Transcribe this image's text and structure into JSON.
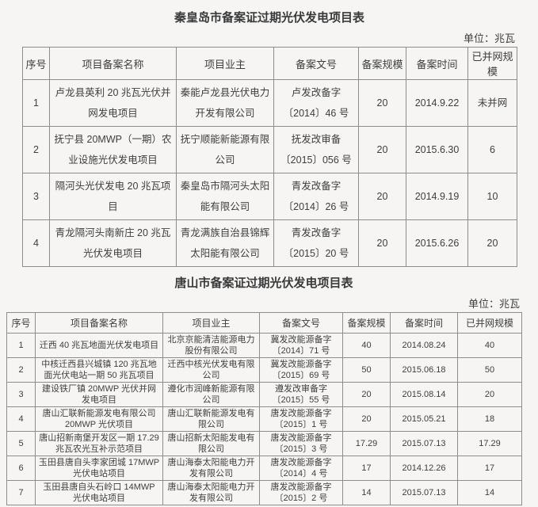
{
  "colors": {
    "background": "#f6f5f3",
    "text": "#3e3e3e",
    "border": "#8d8d8d"
  },
  "document": {
    "tables": [
      {
        "title": "秦皇岛市备案证过期光伏发电项目表",
        "unit_label": "单位：兆瓦",
        "headers": [
          "序号",
          "项目备案名称",
          "项目业主",
          "备案文号",
          "备案规模",
          "备案时间",
          "已并网规模"
        ],
        "rows": [
          [
            "1",
            "卢龙县英利 20 兆瓦光伏并网发电项目",
            "秦能卢龙县光伏电力开发有限公司",
            "卢发改备字〔2014〕46 号",
            "20",
            "2014.9.22",
            "未并网"
          ],
          [
            "2",
            "抚宁县 20MWP（一期）农业设施光伏发电项目",
            "抚宁顺能新能源有限公司",
            "抚发改审备〔2015〕056 号",
            "20",
            "2015.6.30",
            "6"
          ],
          [
            "3",
            "隔河头光伏发电 20 兆瓦项目",
            "秦皇岛市隔河头太阳能有限公司",
            "青发改备字〔2014〕26 号",
            "20",
            "2014.9.19",
            "10"
          ],
          [
            "4",
            "青龙隔河头南新庄 20 兆瓦光伏发电项目",
            "青龙满族自治县锦辉太阳能有限公司",
            "青发改备字〔2015〕20 号",
            "20",
            "2015.6.26",
            "20"
          ]
        ]
      },
      {
        "title": "唐山市备案证过期光伏发电项目表",
        "unit_label": "单位：兆瓦",
        "headers": [
          "序号",
          "项目备案名称",
          "项目业主",
          "备案文号",
          "备案规模",
          "备案时间",
          "已并网规模"
        ],
        "rows": [
          [
            "1",
            "迁西 40 兆瓦地面光伏发电项目",
            "北京京能清洁能源电力股份有限公司",
            "冀发改能源备字〔2014〕71 号",
            "40",
            "2014.08.24",
            "40"
          ],
          [
            "2",
            "中核迁西县兴城镇 120 兆瓦地面光伏电站一期 50 兆瓦项目",
            "迁西中核光伏发电有限公司",
            "冀发改能源备字〔2015〕69 号",
            "50",
            "2015.06.18",
            "50"
          ],
          [
            "3",
            "建设铁厂镇 20MWP 光伏并网发电项目",
            "遵化市润峰新能源有限公司",
            "遵发改审备字〔2015〕55 号",
            "20",
            "2015.08.14",
            "20"
          ],
          [
            "4",
            "唐山汇联新能源发电有限公司 20MWP 光伏项目",
            "唐山汇联新能源发电有限公司",
            "唐发改能源备字〔2015〕1 号",
            "20",
            "2015.05.21",
            "18"
          ],
          [
            "5",
            "唐山招新南堡开发区一期 17.29 兆瓦农光互补示范项目",
            "唐山招新太阳能发电有限公司",
            "唐发改能源备字〔2015〕3 号",
            "17.29",
            "2015.07.13",
            "17.29"
          ],
          [
            "6",
            "玉田县唐自头李家团城 17MWP 光伏电站项目",
            "唐山海泰太阳能电力开发有限公司",
            "唐发改能源备字〔2014〕4 号",
            "17",
            "2014.12.26",
            "17"
          ],
          [
            "7",
            "玉田县唐自头石岭口 14MWP 光伏电站项目",
            "唐山海泰太阳能电力开发有限公司",
            "唐发改能源备字〔2015〕2 号",
            "14",
            "2015.07.13",
            "14"
          ]
        ]
      }
    ]
  }
}
